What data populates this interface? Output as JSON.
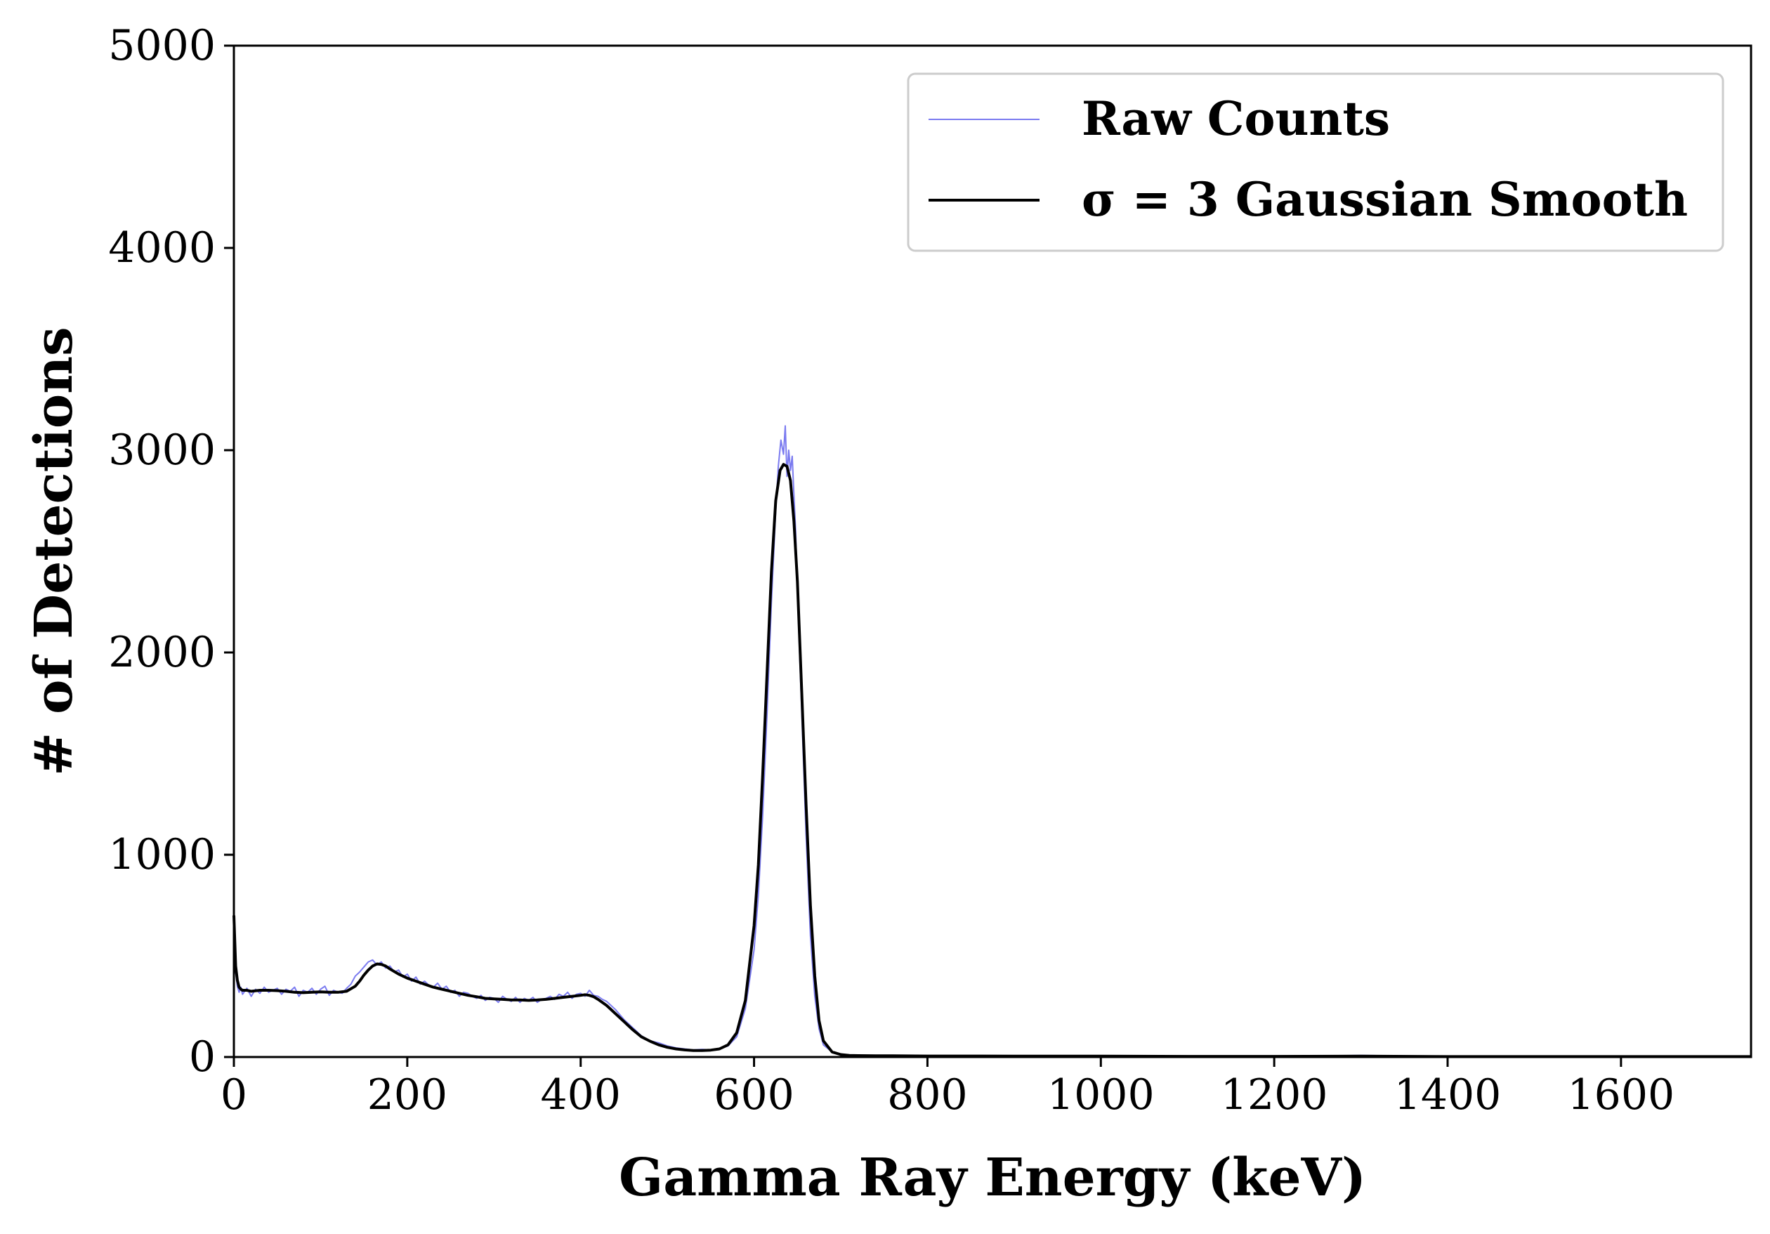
{
  "chart_data": {
    "type": "line",
    "xlabel": "Gamma Ray Energy (keV)",
    "ylabel": "# of Detections",
    "xlim": [
      0,
      1750
    ],
    "ylim": [
      0,
      5000
    ],
    "xticks": [
      0,
      200,
      400,
      600,
      800,
      1000,
      1200,
      1400,
      1600
    ],
    "yticks": [
      0,
      1000,
      2000,
      3000,
      4000,
      5000
    ],
    "grid": false,
    "legend_position": "top-right",
    "colors": {
      "raw": "#7b7bf0",
      "smooth": "#000000"
    },
    "series": [
      {
        "name": "Raw Counts",
        "style": "thin-blue",
        "x": [
          0,
          2,
          4,
          6,
          8,
          10,
          15,
          20,
          25,
          30,
          35,
          40,
          45,
          50,
          55,
          60,
          65,
          70,
          75,
          80,
          85,
          90,
          95,
          100,
          105,
          110,
          115,
          120,
          125,
          130,
          135,
          140,
          145,
          150,
          155,
          160,
          165,
          170,
          175,
          180,
          185,
          190,
          195,
          200,
          205,
          210,
          215,
          220,
          225,
          230,
          235,
          240,
          245,
          250,
          255,
          260,
          265,
          270,
          275,
          280,
          285,
          290,
          295,
          300,
          305,
          310,
          315,
          320,
          325,
          330,
          335,
          340,
          345,
          350,
          355,
          360,
          365,
          370,
          375,
          380,
          385,
          390,
          395,
          400,
          405,
          410,
          415,
          420,
          425,
          430,
          440,
          450,
          460,
          470,
          480,
          490,
          500,
          510,
          520,
          530,
          540,
          550,
          560,
          570,
          580,
          590,
          600,
          605,
          610,
          615,
          620,
          625,
          628,
          631,
          634,
          636,
          638,
          640,
          642,
          644,
          646,
          648,
          650,
          655,
          660,
          665,
          670,
          675,
          680,
          690,
          700,
          710,
          720,
          740,
          760,
          800,
          850,
          900,
          1000,
          1100,
          1200,
          1300,
          1400,
          1500,
          1600,
          1750
        ],
        "y": [
          760,
          420,
          350,
          320,
          345,
          310,
          340,
          300,
          335,
          315,
          345,
          320,
          330,
          340,
          310,
          335,
          325,
          345,
          300,
          330,
          320,
          340,
          310,
          335,
          350,
          305,
          330,
          320,
          315,
          340,
          360,
          400,
          420,
          445,
          470,
          480,
          455,
          470,
          440,
          450,
          420,
          430,
          395,
          410,
          375,
          395,
          360,
          375,
          355,
          345,
          365,
          335,
          350,
          320,
          330,
          300,
          320,
          315,
          300,
          290,
          305,
          280,
          295,
          290,
          270,
          300,
          285,
          275,
          295,
          270,
          290,
          280,
          295,
          270,
          285,
          290,
          300,
          285,
          310,
          300,
          320,
          290,
          310,
          315,
          300,
          330,
          305,
          300,
          285,
          275,
          235,
          185,
          145,
          105,
          80,
          70,
          55,
          45,
          40,
          35,
          38,
          35,
          40,
          55,
          100,
          240,
          530,
          800,
          1200,
          1700,
          2250,
          2700,
          2920,
          3050,
          2980,
          3120,
          2870,
          3000,
          2900,
          2970,
          2780,
          2600,
          2300,
          1700,
          1100,
          600,
          300,
          140,
          60,
          25,
          15,
          10,
          8,
          7,
          6,
          6,
          5,
          5,
          4,
          4,
          3,
          8,
          3,
          2,
          2,
          2
        ]
      },
      {
        "name": "σ = 3 Gaussian Smooth",
        "style": "black",
        "x": [
          0,
          2,
          4,
          6,
          8,
          10,
          15,
          20,
          30,
          40,
          50,
          60,
          70,
          80,
          90,
          100,
          110,
          120,
          130,
          140,
          145,
          150,
          155,
          160,
          165,
          170,
          175,
          180,
          190,
          200,
          210,
          220,
          230,
          240,
          250,
          260,
          270,
          280,
          290,
          300,
          310,
          320,
          330,
          340,
          350,
          360,
          370,
          380,
          390,
          400,
          405,
          410,
          415,
          420,
          430,
          440,
          450,
          460,
          470,
          480,
          490,
          500,
          510,
          520,
          530,
          540,
          550,
          560,
          570,
          580,
          590,
          600,
          605,
          610,
          615,
          620,
          625,
          630,
          634,
          638,
          642,
          646,
          650,
          655,
          660,
          665,
          670,
          675,
          680,
          690,
          700,
          710,
          720,
          740,
          760,
          800,
          850,
          900,
          1000,
          1100,
          1200,
          1300,
          1400,
          1500,
          1600,
          1750
        ],
        "y": [
          700,
          450,
          380,
          345,
          335,
          330,
          330,
          325,
          330,
          330,
          328,
          325,
          320,
          318,
          320,
          322,
          320,
          320,
          325,
          350,
          375,
          405,
          430,
          450,
          460,
          458,
          450,
          435,
          410,
          390,
          375,
          360,
          345,
          335,
          325,
          315,
          305,
          298,
          290,
          287,
          285,
          282,
          282,
          280,
          282,
          285,
          290,
          295,
          300,
          305,
          308,
          305,
          298,
          285,
          255,
          215,
          175,
          135,
          100,
          78,
          60,
          48,
          40,
          35,
          32,
          32,
          34,
          40,
          60,
          120,
          280,
          650,
          950,
          1400,
          1900,
          2400,
          2750,
          2900,
          2930,
          2920,
          2850,
          2650,
          2350,
          1800,
          1250,
          750,
          400,
          180,
          80,
          25,
          12,
          8,
          7,
          6,
          6,
          5,
          5,
          4,
          4,
          3,
          3,
          4,
          2,
          2,
          2,
          2
        ]
      }
    ]
  }
}
